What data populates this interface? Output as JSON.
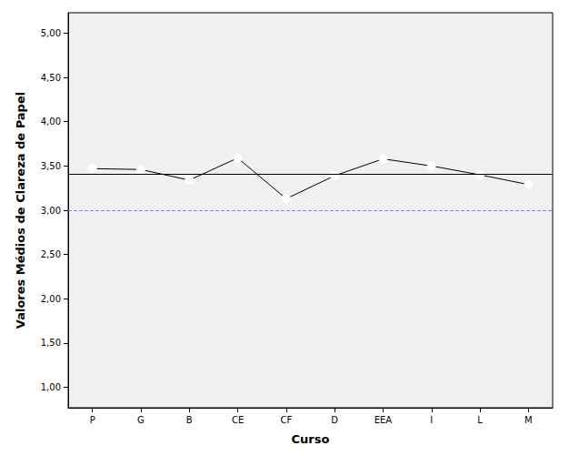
{
  "chart_data": {
    "type": "line",
    "x_label": "Curso",
    "y_label": "Valores Médios de Clareza de Papel",
    "categories": [
      "P",
      "G",
      "B",
      "CE",
      "CF",
      "D",
      "EEA",
      "I",
      "L",
      "M"
    ],
    "values": [
      3.47,
      3.46,
      3.34,
      3.59,
      3.13,
      3.39,
      3.58,
      3.5,
      3.4,
      3.29
    ],
    "color": "#000000",
    "marker": "circle",
    "line_style": "solid",
    "ylim": [
      0.77,
      5.23
    ],
    "yticks": [
      {
        "value": 1.0,
        "label": "1,00"
      },
      {
        "value": 1.5,
        "label": "1,50"
      },
      {
        "value": 2.0,
        "label": "2,00"
      },
      {
        "value": 2.5,
        "label": "2,50"
      },
      {
        "value": 3.0,
        "label": "3,00"
      },
      {
        "value": 3.5,
        "label": "3,50"
      },
      {
        "value": 4.0,
        "label": "4,00"
      },
      {
        "value": 4.5,
        "label": "4,50"
      },
      {
        "value": 5.0,
        "label": "5,00"
      }
    ],
    "reference_lines": [
      {
        "value": 3.41,
        "color": "#000000",
        "line_style": "solid"
      },
      {
        "value": 3.0,
        "color": "#8080ff",
        "line_style": "dashed"
      }
    ],
    "grid": false
  }
}
